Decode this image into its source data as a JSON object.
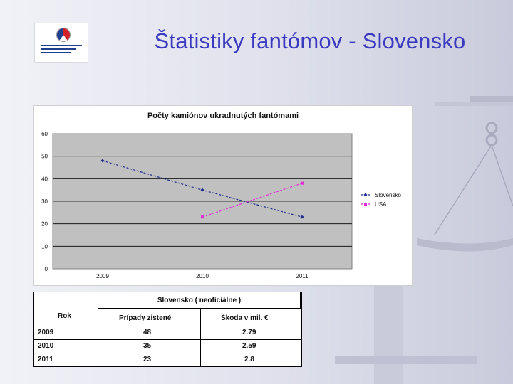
{
  "slide": {
    "title": "Štatistiky fantómov - Slovensko"
  },
  "chart_data": {
    "type": "line",
    "title": "Počty kamiónov ukradnutých fantómami",
    "categories": [
      "2009",
      "2010",
      "2011"
    ],
    "series": [
      {
        "name": "Slovensko",
        "values": [
          48,
          35,
          23
        ],
        "color": "#1f2b8c",
        "marker": "diamond"
      },
      {
        "name": "USA",
        "values": [
          null,
          23,
          38
        ],
        "color": "#e02bd8",
        "marker": "square"
      }
    ],
    "ylim": [
      0,
      60
    ],
    "yticks": [
      "0",
      "10",
      "20",
      "30",
      "40",
      "50",
      "60"
    ],
    "legend_position": "right",
    "plot_background": "#c0c0c0"
  },
  "table": {
    "title": "Slovensko ( neoficiálne )",
    "headers": [
      "Rok",
      "Prípady zistené",
      "Škoda v mil. €"
    ],
    "rows": [
      [
        "2009",
        "48",
        "2.79"
      ],
      [
        "2010",
        "35",
        "2.59"
      ],
      [
        "2011",
        "23",
        "2.8"
      ]
    ]
  }
}
